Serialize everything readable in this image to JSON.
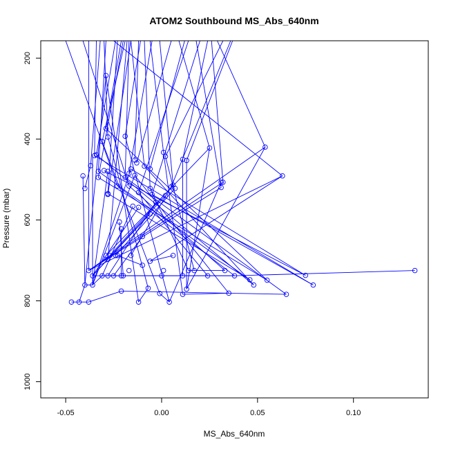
{
  "chart_data": {
    "type": "line",
    "title": "ATOM2 Southbound MS_Abs_640nm",
    "xlabel": "MS_Abs_640nm",
    "ylabel": "Pressure (mbar)",
    "xlim": [
      -0.063,
      0.139
    ],
    "ylim": [
      1040,
      157
    ],
    "y_reversed": true,
    "x_ticks": [
      -0.05,
      0.0,
      0.05,
      0.1
    ],
    "x_tick_labels": [
      "-0.05",
      "0.00",
      "0.05",
      "0.10"
    ],
    "y_ticks": [
      200,
      400,
      600,
      800,
      1000
    ],
    "y_tick_labels": [
      "200",
      "400",
      "600",
      "800",
      "1000"
    ],
    "series_color": "#0000ff",
    "marker": "open-circle",
    "grid": false,
    "legend": "none",
    "points": [
      {
        "x": -0.047,
        "y": 803
      },
      {
        "x": -0.043,
        "y": 803
      },
      {
        "x": -0.038,
        "y": 803
      },
      {
        "x": -0.012,
        "y": 803
      },
      {
        "x": 0.004,
        "y": 803
      },
      {
        "x": 0.065,
        "y": 784
      },
      {
        "x": 0.035,
        "y": 781
      },
      {
        "x": 0.011,
        "y": 784
      },
      {
        "x": -0.001,
        "y": 782
      },
      {
        "x": -0.021,
        "y": 776
      },
      {
        "x": -0.007,
        "y": 769
      },
      {
        "x": 0.013,
        "y": 771
      },
      {
        "x": 0.079,
        "y": 761
      },
      {
        "x": 0.048,
        "y": 761
      },
      {
        "x": -0.04,
        "y": 761
      },
      {
        "x": -0.036,
        "y": 761
      },
      {
        "x": 0.055,
        "y": 749
      },
      {
        "x": 0.046,
        "y": 748
      },
      {
        "x": 0.075,
        "y": 737
      },
      {
        "x": -0.036,
        "y": 738
      },
      {
        "x": -0.031,
        "y": 738
      },
      {
        "x": -0.028,
        "y": 738
      },
      {
        "x": -0.025,
        "y": 738
      },
      {
        "x": -0.021,
        "y": 738
      },
      {
        "x": -0.02,
        "y": 738
      },
      {
        "x": 0.0,
        "y": 738
      },
      {
        "x": 0.011,
        "y": 738
      },
      {
        "x": 0.024,
        "y": 738
      },
      {
        "x": 0.038,
        "y": 738
      },
      {
        "x": 0.132,
        "y": 725
      },
      {
        "x": -0.038,
        "y": 725
      },
      {
        "x": -0.017,
        "y": 725
      },
      {
        "x": 0.001,
        "y": 725
      },
      {
        "x": 0.014,
        "y": 725
      },
      {
        "x": 0.017,
        "y": 725
      },
      {
        "x": 0.033,
        "y": 725
      },
      {
        "x": -0.01,
        "y": 712
      },
      {
        "x": -0.006,
        "y": 702
      },
      {
        "x": -0.029,
        "y": 688
      },
      {
        "x": -0.027,
        "y": 688
      },
      {
        "x": -0.024,
        "y": 688
      },
      {
        "x": -0.023,
        "y": 688
      },
      {
        "x": -0.016,
        "y": 688
      },
      {
        "x": 0.006,
        "y": 688
      },
      {
        "x": -0.028,
        "y": 697
      },
      {
        "x": -0.01,
        "y": 641
      },
      {
        "x": -0.021,
        "y": 622
      },
      {
        "x": -0.022,
        "y": 605
      },
      {
        "x": -0.006,
        "y": 585
      },
      {
        "x": -0.015,
        "y": 566
      },
      {
        "x": -0.012,
        "y": 569
      },
      {
        "x": -0.003,
        "y": 556
      },
      {
        "x": 0.002,
        "y": 540
      },
      {
        "x": -0.005,
        "y": 537
      },
      {
        "x": -0.028,
        "y": 535
      },
      {
        "x": -0.028,
        "y": 537
      },
      {
        "x": -0.012,
        "y": 532
      },
      {
        "x": -0.04,
        "y": 522
      },
      {
        "x": -0.006,
        "y": 522
      },
      {
        "x": 0.005,
        "y": 518
      },
      {
        "x": 0.007,
        "y": 522
      },
      {
        "x": -0.023,
        "y": 516
      },
      {
        "x": -0.017,
        "y": 516
      },
      {
        "x": 0.031,
        "y": 520
      },
      {
        "x": 0.031,
        "y": 507
      },
      {
        "x": 0.032,
        "y": 507
      },
      {
        "x": 0.006,
        "y": 514
      },
      {
        "x": 0.063,
        "y": 491
      },
      {
        "x": -0.041,
        "y": 491
      },
      {
        "x": -0.033,
        "y": 495
      },
      {
        "x": -0.019,
        "y": 495
      },
      {
        "x": -0.014,
        "y": 490
      },
      {
        "x": -0.017,
        "y": 485
      },
      {
        "x": -0.03,
        "y": 478
      },
      {
        "x": -0.028,
        "y": 480
      },
      {
        "x": -0.033,
        "y": 480
      },
      {
        "x": -0.016,
        "y": 474
      },
      {
        "x": -0.006,
        "y": 474
      },
      {
        "x": -0.009,
        "y": 467
      },
      {
        "x": -0.037,
        "y": 466
      },
      {
        "x": -0.013,
        "y": 459
      },
      {
        "x": -0.014,
        "y": 452
      },
      {
        "x": 0.011,
        "y": 450
      },
      {
        "x": 0.013,
        "y": 453
      },
      {
        "x": 0.002,
        "y": 443
      },
      {
        "x": -0.035,
        "y": 441
      },
      {
        "x": -0.034,
        "y": 439
      },
      {
        "x": 0.001,
        "y": 433
      },
      {
        "x": 0.025,
        "y": 422
      },
      {
        "x": 0.054,
        "y": 420
      },
      {
        "x": -0.031,
        "y": 406
      },
      {
        "x": -0.028,
        "y": 395
      },
      {
        "x": -0.019,
        "y": 393
      },
      {
        "x": -0.029,
        "y": 374
      },
      {
        "x": -0.029,
        "y": 243
      }
    ],
    "segments": [
      [
        [
          -0.047,
          803
        ],
        [
          -0.043,
          803
        ]
      ],
      [
        [
          -0.043,
          803
        ],
        [
          -0.038,
          803
        ]
      ],
      [
        [
          -0.038,
          803
        ],
        [
          -0.021,
          776
        ]
      ],
      [
        [
          -0.012,
          803
        ],
        [
          -0.007,
          769
        ]
      ],
      [
        [
          0.004,
          803
        ],
        [
          -0.001,
          782
        ]
      ],
      [
        [
          -0.021,
          776
        ],
        [
          0.065,
          784
        ]
      ],
      [
        [
          0.035,
          781
        ],
        [
          0.011,
          784
        ]
      ],
      [
        [
          -0.043,
          803
        ],
        [
          -0.04,
          761
        ]
      ],
      [
        [
          -0.04,
          761
        ],
        [
          -0.036,
          761
        ]
      ],
      [
        [
          -0.036,
          761
        ],
        [
          -0.031,
          738
        ]
      ],
      [
        [
          -0.036,
          738
        ],
        [
          0.038,
          738
        ]
      ],
      [
        [
          -0.031,
          738
        ],
        [
          -0.028,
          738
        ]
      ],
      [
        [
          -0.028,
          738
        ],
        [
          -0.025,
          738
        ]
      ],
      [
        [
          -0.025,
          738
        ],
        [
          -0.021,
          738
        ]
      ],
      [
        [
          -0.021,
          738
        ],
        [
          -0.02,
          738
        ]
      ],
      [
        [
          -0.02,
          738
        ],
        [
          0.0,
          738
        ]
      ],
      [
        [
          0.0,
          738
        ],
        [
          0.011,
          738
        ]
      ],
      [
        [
          0.011,
          738
        ],
        [
          0.024,
          738
        ]
      ],
      [
        [
          0.024,
          738
        ],
        [
          0.038,
          738
        ]
      ],
      [
        [
          0.038,
          738
        ],
        [
          0.132,
          725
        ]
      ],
      [
        [
          0.014,
          725
        ],
        [
          0.017,
          725
        ]
      ],
      [
        [
          0.017,
          725
        ],
        [
          0.033,
          725
        ]
      ],
      [
        [
          -0.038,
          725
        ],
        [
          -0.038,
          157
        ]
      ],
      [
        [
          -0.036,
          761
        ],
        [
          -0.036,
          441
        ]
      ],
      [
        [
          -0.04,
          761
        ],
        [
          -0.029,
          243
        ]
      ],
      [
        [
          -0.04,
          522
        ],
        [
          -0.037,
          466
        ]
      ],
      [
        [
          -0.037,
          466
        ],
        [
          -0.032,
          157
        ]
      ],
      [
        [
          -0.033,
          495
        ],
        [
          -0.02,
          157
        ]
      ],
      [
        [
          -0.033,
          480
        ],
        [
          -0.029,
          157
        ]
      ],
      [
        [
          -0.028,
          535
        ],
        [
          -0.023,
          157
        ]
      ],
      [
        [
          -0.028,
          537
        ],
        [
          -0.016,
          157
        ]
      ],
      [
        [
          -0.019,
          495
        ],
        [
          -0.017,
          157
        ]
      ],
      [
        [
          -0.017,
          485
        ],
        [
          -0.005,
          157
        ]
      ],
      [
        [
          -0.014,
          452
        ],
        [
          -0.012,
          157
        ]
      ],
      [
        [
          -0.013,
          459
        ],
        [
          0.005,
          157
        ]
      ],
      [
        [
          -0.009,
          467
        ],
        [
          -0.016,
          157
        ]
      ],
      [
        [
          -0.006,
          474
        ],
        [
          0.012,
          157
        ]
      ],
      [
        [
          0.001,
          433
        ],
        [
          -0.006,
          157
        ]
      ],
      [
        [
          0.002,
          443
        ],
        [
          0.032,
          157
        ]
      ],
      [
        [
          0.011,
          450
        ],
        [
          0.024,
          157
        ]
      ],
      [
        [
          0.013,
          453
        ],
        [
          0.037,
          157
        ]
      ],
      [
        [
          0.025,
          422
        ],
        [
          0.009,
          157
        ]
      ],
      [
        [
          0.054,
          420
        ],
        [
          0.029,
          157
        ]
      ],
      [
        [
          0.063,
          491
        ],
        [
          -0.025,
          157
        ]
      ],
      [
        [
          0.031,
          520
        ],
        [
          0.018,
          157
        ]
      ],
      [
        [
          0.032,
          507
        ],
        [
          0.026,
          157
        ]
      ],
      [
        [
          0.005,
          518
        ],
        [
          0.036,
          157
        ]
      ],
      [
        [
          0.006,
          514
        ],
        [
          -0.001,
          157
        ]
      ],
      [
        [
          -0.023,
          516
        ],
        [
          -0.05,
          157
        ]
      ],
      [
        [
          -0.017,
          516
        ],
        [
          -0.041,
          157
        ]
      ],
      [
        [
          -0.035,
          441
        ],
        [
          -0.034,
          157
        ]
      ],
      [
        [
          -0.034,
          439
        ],
        [
          -0.024,
          157
        ]
      ],
      [
        [
          -0.031,
          406
        ],
        [
          -0.019,
          157
        ]
      ],
      [
        [
          -0.028,
          395
        ],
        [
          -0.03,
          157
        ]
      ],
      [
        [
          -0.019,
          393
        ],
        [
          -0.011,
          157
        ]
      ],
      [
        [
          -0.029,
          374
        ],
        [
          -0.021,
          157
        ]
      ],
      [
        [
          -0.012,
          532
        ],
        [
          0.014,
          157
        ]
      ],
      [
        [
          -0.005,
          537
        ],
        [
          0.02,
          157
        ]
      ],
      [
        [
          -0.006,
          522
        ],
        [
          -0.009,
          157
        ]
      ],
      [
        [
          -0.028,
          697
        ],
        [
          -0.018,
          157
        ]
      ],
      [
        [
          -0.036,
          738
        ],
        [
          -0.006,
          585
        ]
      ],
      [
        [
          -0.036,
          738
        ],
        [
          -0.012,
          569
        ]
      ],
      [
        [
          -0.036,
          738
        ],
        [
          0.002,
          540
        ]
      ],
      [
        [
          -0.031,
          738
        ],
        [
          -0.015,
          566
        ]
      ],
      [
        [
          -0.028,
          738
        ],
        [
          -0.003,
          556
        ]
      ],
      [
        [
          -0.025,
          738
        ],
        [
          -0.01,
          641
        ]
      ],
      [
        [
          -0.021,
          738
        ],
        [
          -0.021,
          622
        ]
      ],
      [
        [
          -0.02,
          738
        ],
        [
          -0.022,
          605
        ]
      ],
      [
        [
          -0.036,
          761
        ],
        [
          -0.014,
          490
        ]
      ],
      [
        [
          -0.036,
          761
        ],
        [
          -0.028,
          480
        ]
      ],
      [
        [
          -0.036,
          761
        ],
        [
          -0.016,
          474
        ]
      ],
      [
        [
          -0.04,
          761
        ],
        [
          -0.041,
          491
        ]
      ],
      [
        [
          -0.038,
          725
        ],
        [
          0.063,
          491
        ]
      ],
      [
        [
          -0.038,
          725
        ],
        [
          0.031,
          520
        ]
      ],
      [
        [
          -0.038,
          725
        ],
        [
          0.032,
          507
        ]
      ],
      [
        [
          -0.038,
          725
        ],
        [
          0.054,
          420
        ]
      ],
      [
        [
          -0.029,
          688
        ],
        [
          0.025,
          422
        ]
      ],
      [
        [
          -0.027,
          688
        ],
        [
          0.006,
          514
        ]
      ],
      [
        [
          -0.024,
          688
        ],
        [
          0.007,
          522
        ]
      ],
      [
        [
          -0.023,
          688
        ],
        [
          -0.01,
          712
        ]
      ],
      [
        [
          -0.016,
          688
        ],
        [
          0.005,
          518
        ]
      ],
      [
        [
          0.006,
          688
        ],
        [
          -0.006,
          702
        ]
      ],
      [
        [
          -0.035,
          441
        ],
        [
          0.079,
          761
        ]
      ],
      [
        [
          -0.034,
          439
        ],
        [
          0.048,
          761
        ]
      ],
      [
        [
          -0.033,
          495
        ],
        [
          0.055,
          749
        ]
      ],
      [
        [
          -0.033,
          480
        ],
        [
          0.046,
          748
        ]
      ],
      [
        [
          -0.03,
          478
        ],
        [
          0.075,
          737
        ]
      ],
      [
        [
          -0.028,
          535
        ],
        [
          0.046,
          748
        ]
      ],
      [
        [
          -0.023,
          516
        ],
        [
          0.038,
          738
        ]
      ],
      [
        [
          -0.017,
          516
        ],
        [
          0.033,
          725
        ]
      ],
      [
        [
          -0.012,
          532
        ],
        [
          0.024,
          738
        ]
      ],
      [
        [
          -0.006,
          522
        ],
        [
          0.014,
          725
        ]
      ],
      [
        [
          0.002,
          443
        ],
        [
          0.017,
          725
        ]
      ],
      [
        [
          0.011,
          450
        ],
        [
          0.011,
          738
        ]
      ],
      [
        [
          0.013,
          453
        ],
        [
          0.013,
          771
        ]
      ],
      [
        [
          0.001,
          433
        ],
        [
          0.011,
          784
        ]
      ],
      [
        [
          -0.014,
          490
        ],
        [
          0.035,
          781
        ]
      ],
      [
        [
          -0.019,
          495
        ],
        [
          0.065,
          784
        ]
      ],
      [
        [
          -0.009,
          467
        ],
        [
          0.048,
          761
        ]
      ],
      [
        [
          -0.029,
          374
        ],
        [
          0.055,
          749
        ]
      ],
      [
        [
          -0.031,
          406
        ],
        [
          -0.001,
          782
        ]
      ],
      [
        [
          -0.028,
          395
        ],
        [
          -0.007,
          769
        ]
      ],
      [
        [
          -0.029,
          243
        ],
        [
          -0.012,
          803
        ]
      ],
      [
        [
          -0.019,
          393
        ],
        [
          0.004,
          803
        ]
      ],
      [
        [
          0.025,
          422
        ],
        [
          0.013,
          771
        ]
      ],
      [
        [
          0.054,
          420
        ],
        [
          0.013,
          771
        ]
      ],
      [
        [
          0.031,
          507
        ],
        [
          0.004,
          803
        ]
      ],
      [
        [
          0.063,
          491
        ],
        [
          -0.006,
          702
        ]
      ],
      [
        [
          -0.016,
          474
        ],
        [
          0.075,
          737
        ]
      ],
      [
        [
          -0.005,
          537
        ],
        [
          0.079,
          761
        ]
      ]
    ]
  }
}
